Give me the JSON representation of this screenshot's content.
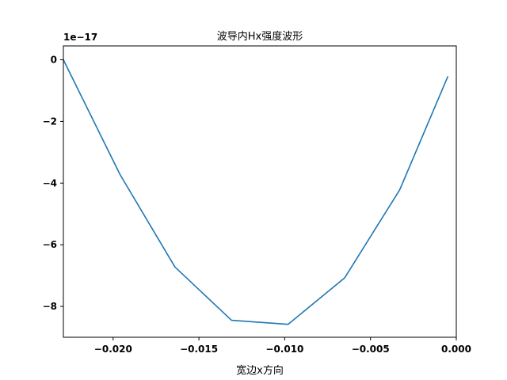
{
  "chart_data": {
    "type": "line",
    "title": "波导内Hx强度波形",
    "xlabel": "宽边x方向",
    "ylabel": "",
    "y_offset_label": "1e−17",
    "xlim": [
      -0.0229,
      0.0
    ],
    "ylim": [
      -9.0,
      0.45
    ],
    "x_ticks": [
      -0.02,
      -0.015,
      -0.01,
      -0.005,
      0.0
    ],
    "x_tick_labels": [
      "−0.020",
      "−0.015",
      "−0.010",
      "−0.005",
      "0.000"
    ],
    "y_ticks": [
      0,
      -2,
      -4,
      -6,
      -8
    ],
    "y_tick_labels": [
      "0",
      "−2",
      "−4",
      "−6",
      "−8"
    ],
    "grid": false,
    "line_color": "#1f77b4",
    "series": [
      {
        "x": [
          -0.0229,
          -0.0196,
          -0.0164,
          -0.0131,
          -0.0098,
          -0.0065,
          -0.0033,
          -0.0005
        ],
        "y": [
          0.0,
          -3.72,
          -6.72,
          -8.45,
          -8.58,
          -7.07,
          -4.22,
          -0.55
        ]
      }
    ]
  }
}
